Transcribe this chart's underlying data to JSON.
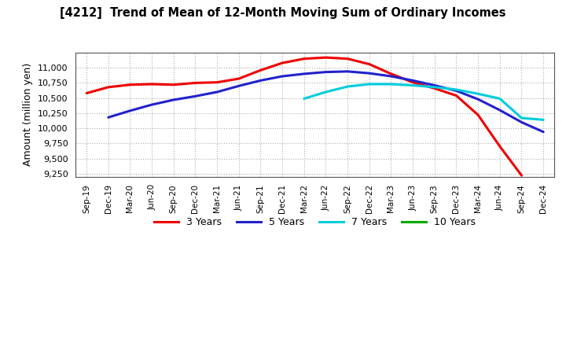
{
  "title": "[4212]  Trend of Mean of 12-Month Moving Sum of Ordinary Incomes",
  "ylabel": "Amount (million yen)",
  "background_color": "#ffffff",
  "plot_bg_color": "#ffffff",
  "grid_color": "#999999",
  "x_labels": [
    "Sep-19",
    "Dec-19",
    "Mar-20",
    "Jun-20",
    "Sep-20",
    "Dec-20",
    "Mar-21",
    "Jun-21",
    "Sep-21",
    "Dec-21",
    "Mar-22",
    "Jun-22",
    "Sep-22",
    "Dec-22",
    "Mar-23",
    "Jun-23",
    "Sep-23",
    "Dec-23",
    "Mar-24",
    "Jun-24",
    "Sep-24",
    "Dec-24"
  ],
  "ylim": [
    9200,
    11250
  ],
  "yticks": [
    9250,
    9500,
    9750,
    10000,
    10250,
    10500,
    10750,
    11000
  ],
  "series": {
    "3 Years": {
      "color": "#ee0000",
      "data_x": [
        0,
        1,
        2,
        3,
        4,
        5,
        6,
        7,
        8,
        9,
        10,
        11,
        12,
        13,
        14,
        15,
        16,
        17,
        18,
        19,
        20
      ],
      "data_y": [
        10580,
        10680,
        10720,
        10730,
        10720,
        10750,
        10760,
        10820,
        10960,
        11080,
        11150,
        11170,
        11150,
        11060,
        10900,
        10760,
        10660,
        10540,
        10220,
        9700,
        9220
      ]
    },
    "5 Years": {
      "color": "#2222cc",
      "data_x": [
        1,
        2,
        3,
        4,
        5,
        6,
        7,
        8,
        9,
        10,
        11,
        12,
        13,
        14,
        15,
        16,
        17,
        18,
        19,
        20,
        21
      ],
      "data_y": [
        10180,
        10290,
        10390,
        10470,
        10530,
        10600,
        10700,
        10790,
        10860,
        10900,
        10930,
        10940,
        10910,
        10860,
        10790,
        10710,
        10620,
        10480,
        10300,
        10100,
        9940
      ]
    },
    "7 Years": {
      "color": "#00ccdd",
      "data_x": [
        10,
        11,
        12,
        13,
        14,
        15,
        16,
        17,
        18,
        19,
        20,
        21
      ],
      "data_y": [
        10490,
        10600,
        10690,
        10730,
        10730,
        10710,
        10680,
        10640,
        10570,
        10490,
        10170,
        10140
      ]
    },
    "10 Years": {
      "color": "#00aa00",
      "data_x": [],
      "data_y": []
    }
  }
}
